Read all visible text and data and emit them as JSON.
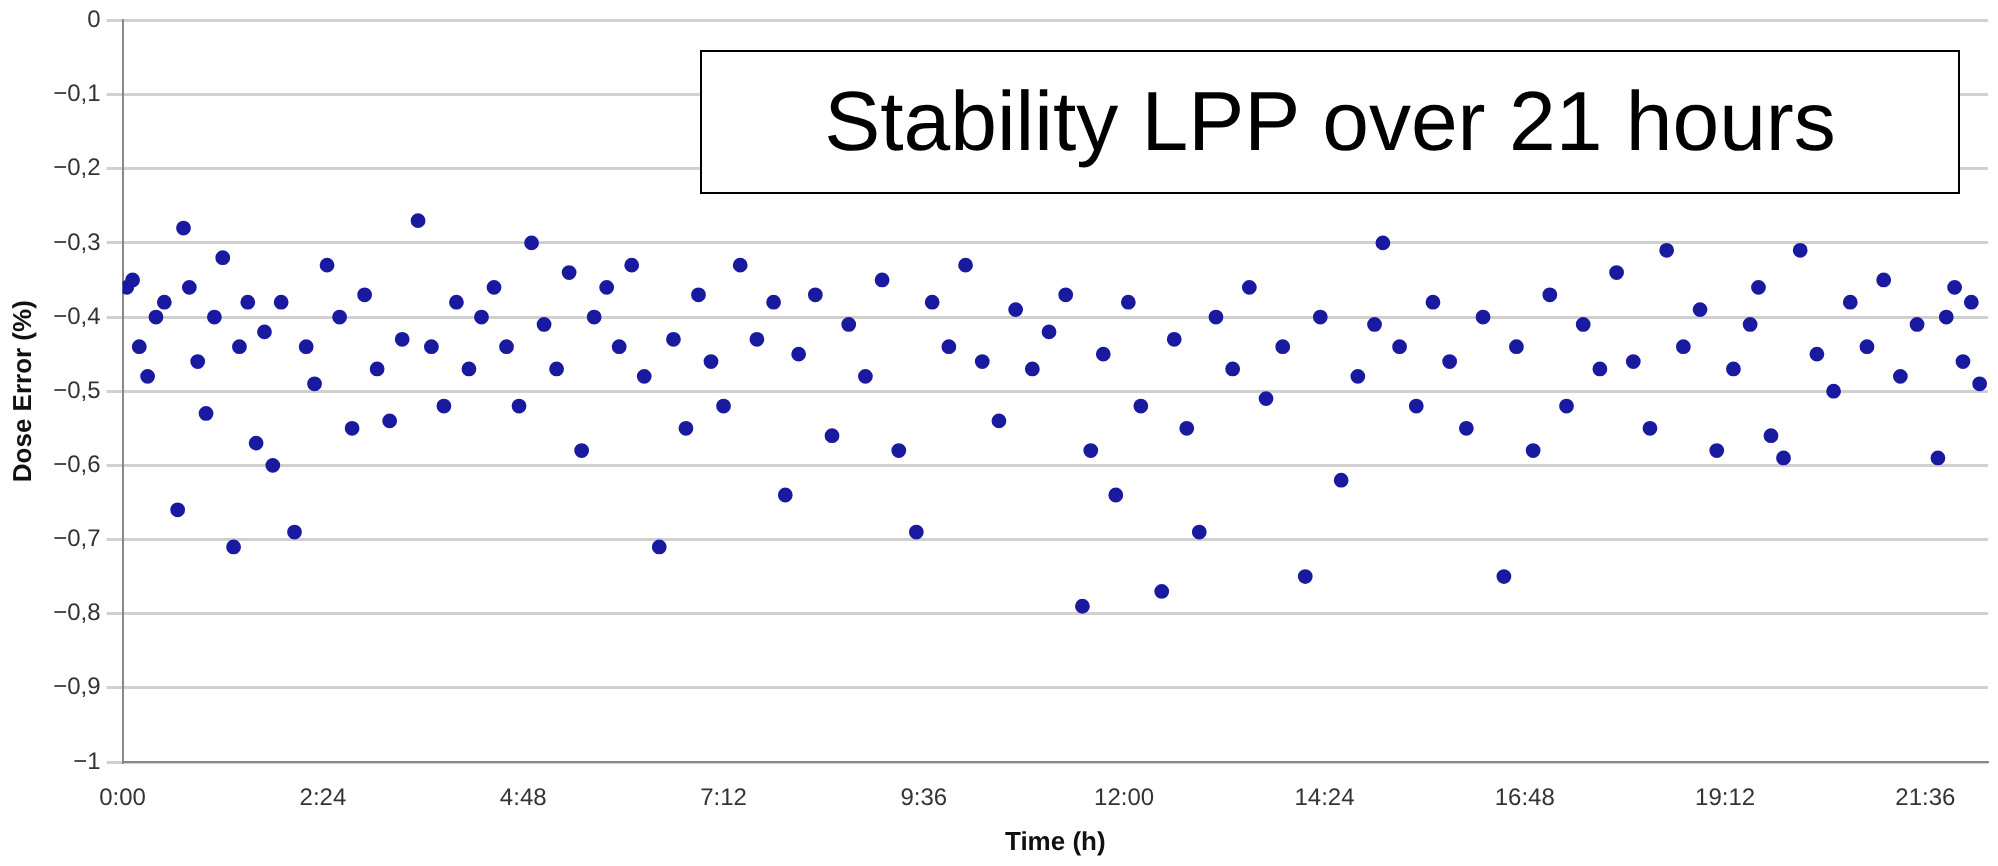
{
  "chart_data": {
    "type": "scatter",
    "title": "Stability LPP over 21 hours",
    "xlabel": "Time (h)",
    "ylabel": "Dose Error (%)",
    "x": [
      0.05,
      0.12,
      0.2,
      0.3,
      0.4,
      0.5,
      0.66,
      0.73,
      0.8,
      0.9,
      1.0,
      1.1,
      1.2,
      1.33,
      1.4,
      1.5,
      1.6,
      1.7,
      1.8,
      1.9,
      2.06,
      2.2,
      2.3,
      2.45,
      2.6,
      2.75,
      2.9,
      3.05,
      3.2,
      3.35,
      3.54,
      3.7,
      3.85,
      4.0,
      4.15,
      4.3,
      4.45,
      4.6,
      4.75,
      4.9,
      5.05,
      5.2,
      5.35,
      5.5,
      5.65,
      5.8,
      5.95,
      6.1,
      6.25,
      6.43,
      6.6,
      6.75,
      6.9,
      7.05,
      7.2,
      7.4,
      7.6,
      7.8,
      7.94,
      8.1,
      8.3,
      8.5,
      8.7,
      8.9,
      9.1,
      9.3,
      9.51,
      9.7,
      9.9,
      10.1,
      10.3,
      10.5,
      10.7,
      10.9,
      11.1,
      11.3,
      11.5,
      11.6,
      11.75,
      11.9,
      12.05,
      12.2,
      12.45,
      12.6,
      12.75,
      12.9,
      13.1,
      13.3,
      13.5,
      13.7,
      13.9,
      14.17,
      14.35,
      14.6,
      14.8,
      15.0,
      15.1,
      15.3,
      15.5,
      15.7,
      15.9,
      16.1,
      16.3,
      16.55,
      16.7,
      16.9,
      17.1,
      17.3,
      17.5,
      17.7,
      17.9,
      18.1,
      18.3,
      18.5,
      18.7,
      18.9,
      19.1,
      19.3,
      19.5,
      19.6,
      19.75,
      19.9,
      20.1,
      20.3,
      20.5,
      20.7,
      20.9,
      21.1,
      21.3,
      21.5,
      21.75,
      21.85,
      21.95,
      22.05,
      22.15,
      22.25
    ],
    "values": [
      -0.36,
      -0.35,
      -0.44,
      -0.48,
      -0.4,
      -0.38,
      -0.66,
      -0.28,
      -0.36,
      -0.46,
      -0.53,
      -0.4,
      -0.32,
      -0.71,
      -0.44,
      -0.38,
      -0.57,
      -0.42,
      -0.6,
      -0.38,
      -0.69,
      -0.44,
      -0.49,
      -0.33,
      -0.4,
      -0.55,
      -0.37,
      -0.47,
      -0.54,
      -0.43,
      -0.27,
      -0.44,
      -0.52,
      -0.38,
      -0.47,
      -0.4,
      -0.36,
      -0.44,
      -0.52,
      -0.3,
      -0.41,
      -0.47,
      -0.34,
      -0.58,
      -0.4,
      -0.36,
      -0.44,
      -0.33,
      -0.48,
      -0.71,
      -0.43,
      -0.55,
      -0.37,
      -0.46,
      -0.52,
      -0.33,
      -0.43,
      -0.38,
      -0.64,
      -0.45,
      -0.37,
      -0.56,
      -0.41,
      -0.48,
      -0.35,
      -0.58,
      -0.69,
      -0.38,
      -0.44,
      -0.33,
      -0.46,
      -0.54,
      -0.39,
      -0.47,
      -0.42,
      -0.37,
      -0.79,
      -0.58,
      -0.45,
      -0.64,
      -0.38,
      -0.52,
      -0.77,
      -0.43,
      -0.55,
      -0.69,
      -0.4,
      -0.47,
      -0.36,
      -0.51,
      -0.44,
      -0.75,
      -0.4,
      -0.62,
      -0.48,
      -0.41,
      -0.3,
      -0.44,
      -0.52,
      -0.38,
      -0.46,
      -0.55,
      -0.4,
      -0.75,
      -0.44,
      -0.58,
      -0.37,
      -0.52,
      -0.41,
      -0.47,
      -0.34,
      -0.46,
      -0.55,
      -0.31,
      -0.44,
      -0.39,
      -0.58,
      -0.47,
      -0.41,
      -0.36,
      -0.56,
      -0.59,
      -0.31,
      -0.45,
      -0.5,
      -0.38,
      -0.44,
      -0.35,
      -0.48,
      -0.41,
      -0.59,
      -0.4,
      -0.36,
      -0.46,
      -0.38,
      -0.49
    ],
    "color": "#1a1aa0",
    "marker": "circle",
    "xlim": [
      0,
      22.35
    ],
    "ylim": [
      -1,
      0
    ],
    "xticks": [
      {
        "value": 0,
        "label": "0:00"
      },
      {
        "value": 2.4,
        "label": "2:24"
      },
      {
        "value": 4.8,
        "label": "4:48"
      },
      {
        "value": 7.2,
        "label": "7:12"
      },
      {
        "value": 9.6,
        "label": "9:36"
      },
      {
        "value": 12,
        "label": "12:00"
      },
      {
        "value": 14.4,
        "label": "14:24"
      },
      {
        "value": 16.8,
        "label": "16:48"
      },
      {
        "value": 19.2,
        "label": "19:12"
      },
      {
        "value": 21.6,
        "label": "21:36"
      }
    ],
    "yticks": [
      {
        "value": 0,
        "label": "0"
      },
      {
        "value": -0.1,
        "label": "−0,1"
      },
      {
        "value": -0.2,
        "label": "−0,2"
      },
      {
        "value": -0.3,
        "label": "−0,3"
      },
      {
        "value": -0.4,
        "label": "−0,4"
      },
      {
        "value": -0.5,
        "label": "−0,5"
      },
      {
        "value": -0.6,
        "label": "−0,6"
      },
      {
        "value": -0.7,
        "label": "−0,7"
      },
      {
        "value": -0.8,
        "label": "−0,8"
      },
      {
        "value": -0.9,
        "label": "−0,9"
      },
      {
        "value": -1,
        "label": "−1"
      }
    ],
    "grid": "y"
  }
}
